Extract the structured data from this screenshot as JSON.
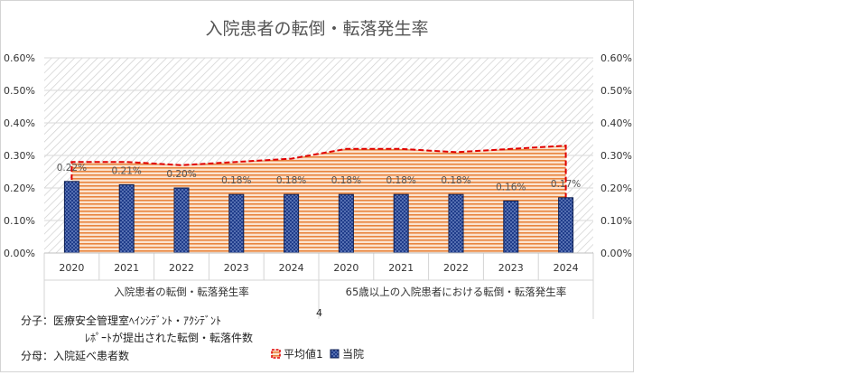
{
  "chart_data": {
    "type": "bar",
    "title": "入院患者の転倒・転落発生率",
    "categories": [
      "2020",
      "2021",
      "2022",
      "2023",
      "2024",
      "2020",
      "2021",
      "2022",
      "2023",
      "2024"
    ],
    "groups": [
      "入院患者の転倒・転落発生率",
      "65歳以上の入院患者における転倒・転落発生率"
    ],
    "series": [
      {
        "name": "平均値1",
        "kind": "area",
        "values": [
          0.28,
          0.28,
          0.27,
          0.28,
          0.29,
          0.32,
          0.32,
          0.31,
          0.32,
          0.33
        ]
      },
      {
        "name": "当院",
        "kind": "bar",
        "values": [
          0.22,
          0.21,
          0.2,
          0.18,
          0.18,
          0.18,
          0.18,
          0.18,
          0.16,
          0.17
        ]
      }
    ],
    "data_labels": [
      "0.22%",
      "0.21%",
      "0.20%",
      "0.18%",
      "0.18%",
      "0.18%",
      "0.18%",
      "0.18%",
      "0.16%",
      "0.17%"
    ],
    "ylim": [
      0,
      0.6
    ],
    "yticks": [
      "0.00%",
      "0.10%",
      "0.20%",
      "0.30%",
      "0.40%",
      "0.50%",
      "0.60%"
    ],
    "secondary_axis": true,
    "legend_position": "bottom",
    "xlabel": "",
    "ylabel": ""
  },
  "notes": {
    "numerator_label": "分子：医療安全管理室ﾍｲﾝｼﾃﾞﾝﾄ・ｱｸｼﾃﾞﾝﾄ",
    "numerator_cont": "ﾚﾎﾟｰﾄが提出された転倒・転落件数",
    "denominator_label": "分母：入院延べ患者数",
    "page_number": "4"
  },
  "colors": {
    "bar": "#1f3c8a",
    "bar_border": "#0d1e50",
    "area": "#e8843e",
    "average_line": "#e00000",
    "grid": "#d9d9d9"
  }
}
